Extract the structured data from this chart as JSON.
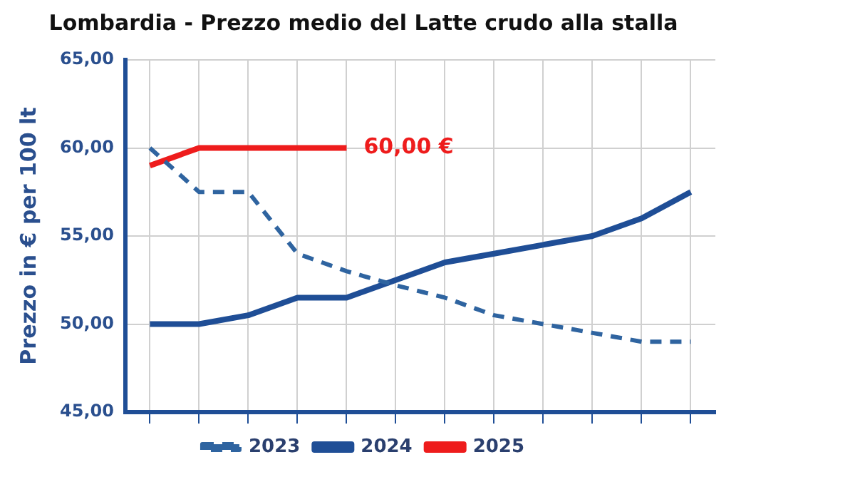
{
  "chart_data": {
    "type": "line",
    "title": "Lombardia - Prezzo medio del Latte crudo alla stalla",
    "ylabel": "Prezzo in € per 100 lt",
    "categories": [
      null,
      null,
      null,
      null,
      null,
      null,
      null,
      null,
      null,
      null,
      null,
      null
    ],
    "series": [
      {
        "name": "2023",
        "color": "#2f64a0",
        "line_style": "dashed",
        "values": [
          60,
          57.5,
          57.5,
          54,
          53,
          52.2,
          51.5,
          50.5,
          50,
          49.5,
          49,
          49
        ]
      },
      {
        "name": "2024",
        "color": "#1f4e96",
        "line_style": "solid",
        "values": [
          50,
          50,
          50.5,
          51.5,
          51.5,
          52.5,
          53.5,
          54,
          54.5,
          55,
          56,
          57.5
        ]
      },
      {
        "name": "2025",
        "color": "#ee1c1c",
        "line_style": "solid",
        "values": [
          59,
          60,
          60,
          60,
          60,
          null,
          null,
          null,
          null,
          null,
          null,
          null
        ]
      }
    ],
    "ylim": [
      45,
      65
    ],
    "yticks": [
      {
        "value": 45,
        "label": "45,00"
      },
      {
        "value": 50,
        "label": "50,00"
      },
      {
        "value": 55,
        "label": "55,00"
      },
      {
        "value": 60,
        "label": "60,00"
      },
      {
        "value": 65,
        "label": "65,00"
      }
    ],
    "grid": true,
    "legend": "bottom",
    "marker": "none",
    "tick_labels": "y",
    "annotations": [
      "60,00 €"
    ]
  }
}
